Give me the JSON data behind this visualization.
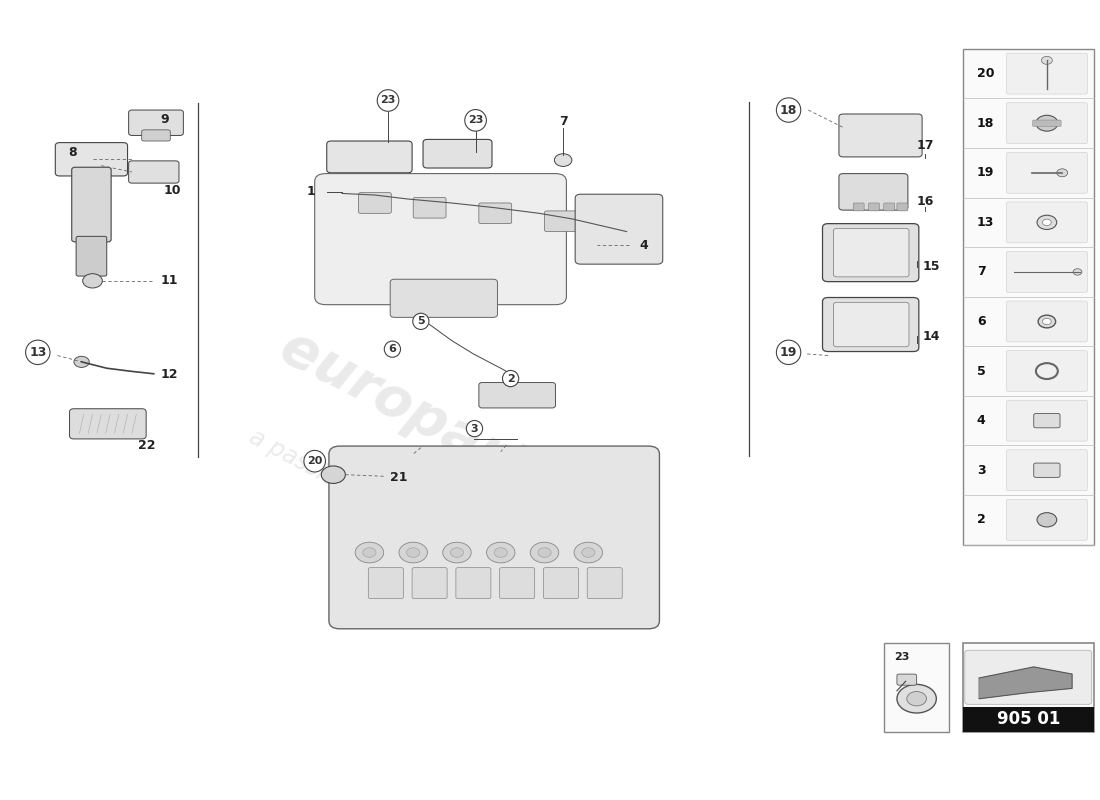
{
  "background_color": "#ffffff",
  "part_number_badge": "905 01",
  "sidebar_nums": [
    "20",
    "18",
    "19",
    "13",
    "7",
    "6",
    "5",
    "4",
    "3",
    "2"
  ],
  "color_line": "#444444",
  "color_text": "#222222"
}
